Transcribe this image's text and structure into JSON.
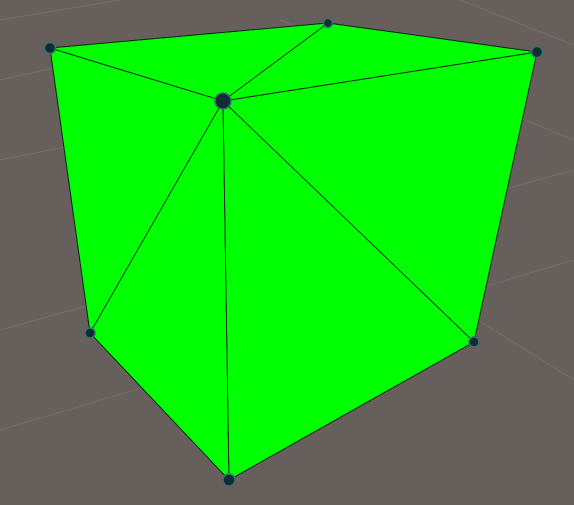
{
  "scene": {
    "background_color": "#675f5b",
    "grid_color": "#7a726d",
    "mesh_color": "#00ff00",
    "edge_color": "#0b2a18",
    "vertex_color": "#0f2e33",
    "vertex_highlight": "#3c6f73",
    "vertex_count": 8,
    "face_count": 3
  }
}
